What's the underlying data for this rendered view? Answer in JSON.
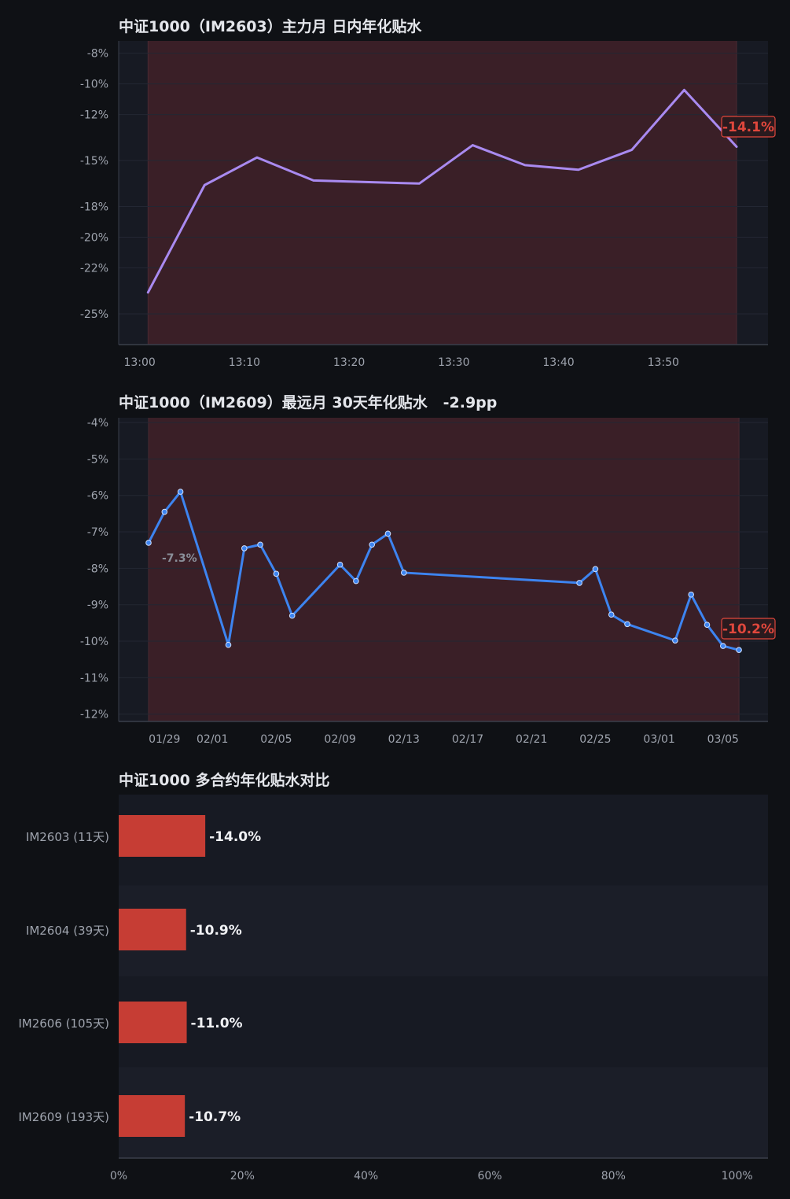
{
  "colors": {
    "page_bg": "#0f1115",
    "plot_bg": "#171a23",
    "shade": "#3a1f27",
    "purple": "#a98af0",
    "blue": "#3d84f0",
    "bar": "#c63d34",
    "neg_label": "#e0473c",
    "axis_text": "#9ea3ad",
    "title_text": "#e4e6eb"
  },
  "chart_data": [
    {
      "id": "intraday",
      "type": "line",
      "title": "中证1000（IM2603）主力月 日内年化贴水",
      "x_ticks": [
        "13:00",
        "13:10",
        "13:20",
        "13:30",
        "13:40",
        "13:50"
      ],
      "y_ticks": [
        "-8%",
        "-10%",
        "-12%",
        "-15%",
        "-18%",
        "-20%",
        "-22%",
        "-25%"
      ],
      "ylim": [
        -27,
        -7.2
      ],
      "xlim_minutes": [
        -2,
        60
      ],
      "grid": true,
      "shaded_band": {
        "from_minute": 0.8,
        "to_minute": 57
      },
      "series": [
        {
          "x_minutes": [
            0.8,
            6.2,
            11.2,
            16.6,
            21.6,
            26.7,
            31.8,
            36.8,
            41.9,
            47.0,
            52.0,
            57.0
          ],
          "values": [
            -23.6,
            -16.6,
            -14.8,
            -16.3,
            -16.4,
            -16.5,
            -14.0,
            -15.3,
            -15.6,
            -14.3,
            -10.4,
            -14.1
          ]
        }
      ],
      "end_label": "-14.1%"
    },
    {
      "id": "daily",
      "type": "line",
      "title": "中证1000（IM2609）最远月 30天年化贴水   -2.9pp",
      "x_ticks": [
        "01/29",
        "02/01",
        "02/05",
        "02/09",
        "02/13",
        "02/17",
        "02/21",
        "02/25",
        "03/01",
        "03/05"
      ],
      "y_ticks": [
        "-4%",
        "-5%",
        "-6%",
        "-7%",
        "-8%",
        "-9%",
        "-10%",
        "-11%",
        "-12%"
      ],
      "ylim": [
        -12.2,
        -3.87
      ],
      "grid": true,
      "shaded_band": {
        "from": "01/28",
        "to": "03/06"
      },
      "series": [
        {
          "x": [
            "01/28",
            "01/29",
            "01/30",
            "02/02",
            "02/03",
            "02/04",
            "02/05",
            "02/06",
            "02/09",
            "02/10",
            "02/11",
            "02/12",
            "02/13",
            "02/24",
            "02/25",
            "02/26",
            "02/27",
            "03/02",
            "03/03",
            "03/04",
            "03/05",
            "03/06"
          ],
          "values": [
            -7.3,
            -6.45,
            -5.9,
            -10.1,
            -7.45,
            -7.35,
            -8.15,
            -9.3,
            -7.9,
            -8.35,
            -7.35,
            -7.05,
            -8.12,
            -8.4,
            -8.02,
            -9.27,
            -9.53,
            -9.98,
            -8.72,
            -9.55,
            -10.13,
            -10.24
          ]
        }
      ],
      "start_label": "-7.3%",
      "end_label": "-10.2%"
    },
    {
      "id": "contracts",
      "type": "bar",
      "orientation": "horizontal",
      "title": "中证1000 多合约年化贴水对比",
      "categories": [
        "IM2603 (11天)",
        "IM2604 (39天)",
        "IM2606 (105天)",
        "IM2609 (193天)"
      ],
      "values": [
        -14.0,
        -10.9,
        -11.0,
        -10.7
      ],
      "value_labels": [
        "-14.0%",
        "-10.9%",
        "-11.0%",
        "-10.7%"
      ],
      "x_ticks": [
        "0%",
        "20%",
        "40%",
        "60%",
        "80%",
        "100%"
      ],
      "xlim": [
        0,
        105
      ]
    }
  ]
}
